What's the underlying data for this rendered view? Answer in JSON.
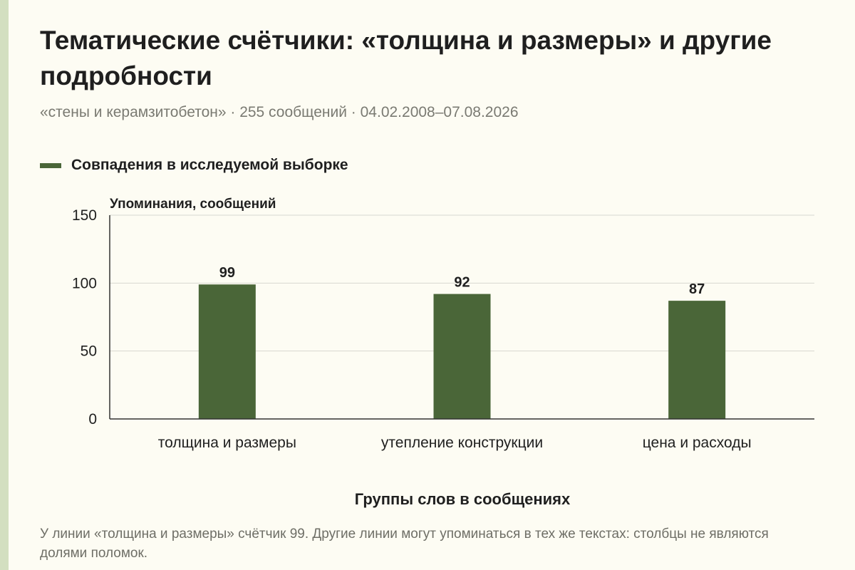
{
  "header": {
    "title": "Тематические счётчики: «толщина и размеры» и другие подробности",
    "subtitle": "«стены и керамзитобетон» · 255 сообщений · 04.02.2008–07.08.2026"
  },
  "legend": {
    "label": "Совпадения в исследуемой выборке"
  },
  "footer": {
    "note": "У линии «толщина и размеры» счётчик 99. Другие линии могут упоминаться в тех же текстах: столбцы не являются долями поломок."
  },
  "colors": {
    "bar": "#4a6638",
    "grid": "#d8d8d0",
    "axis": "#333333",
    "background": "#fdfcf3",
    "accent_strip": "#d3dfc0"
  },
  "chart_data": {
    "type": "bar",
    "title": "",
    "xlabel": "Группы слов в сообщениях",
    "ylabel": "Упоминания, сообщений",
    "categories": [
      "толщина и размеры",
      "утепление конструкции",
      "цена и расходы"
    ],
    "series": [
      {
        "name": "Совпадения в исследуемой выборке",
        "values": [
          99,
          92,
          87
        ]
      }
    ],
    "ylim": [
      0,
      150
    ],
    "yticks": [
      0,
      50,
      100,
      150
    ],
    "grid": true,
    "legend_position": "top-left",
    "data_labels": true
  }
}
